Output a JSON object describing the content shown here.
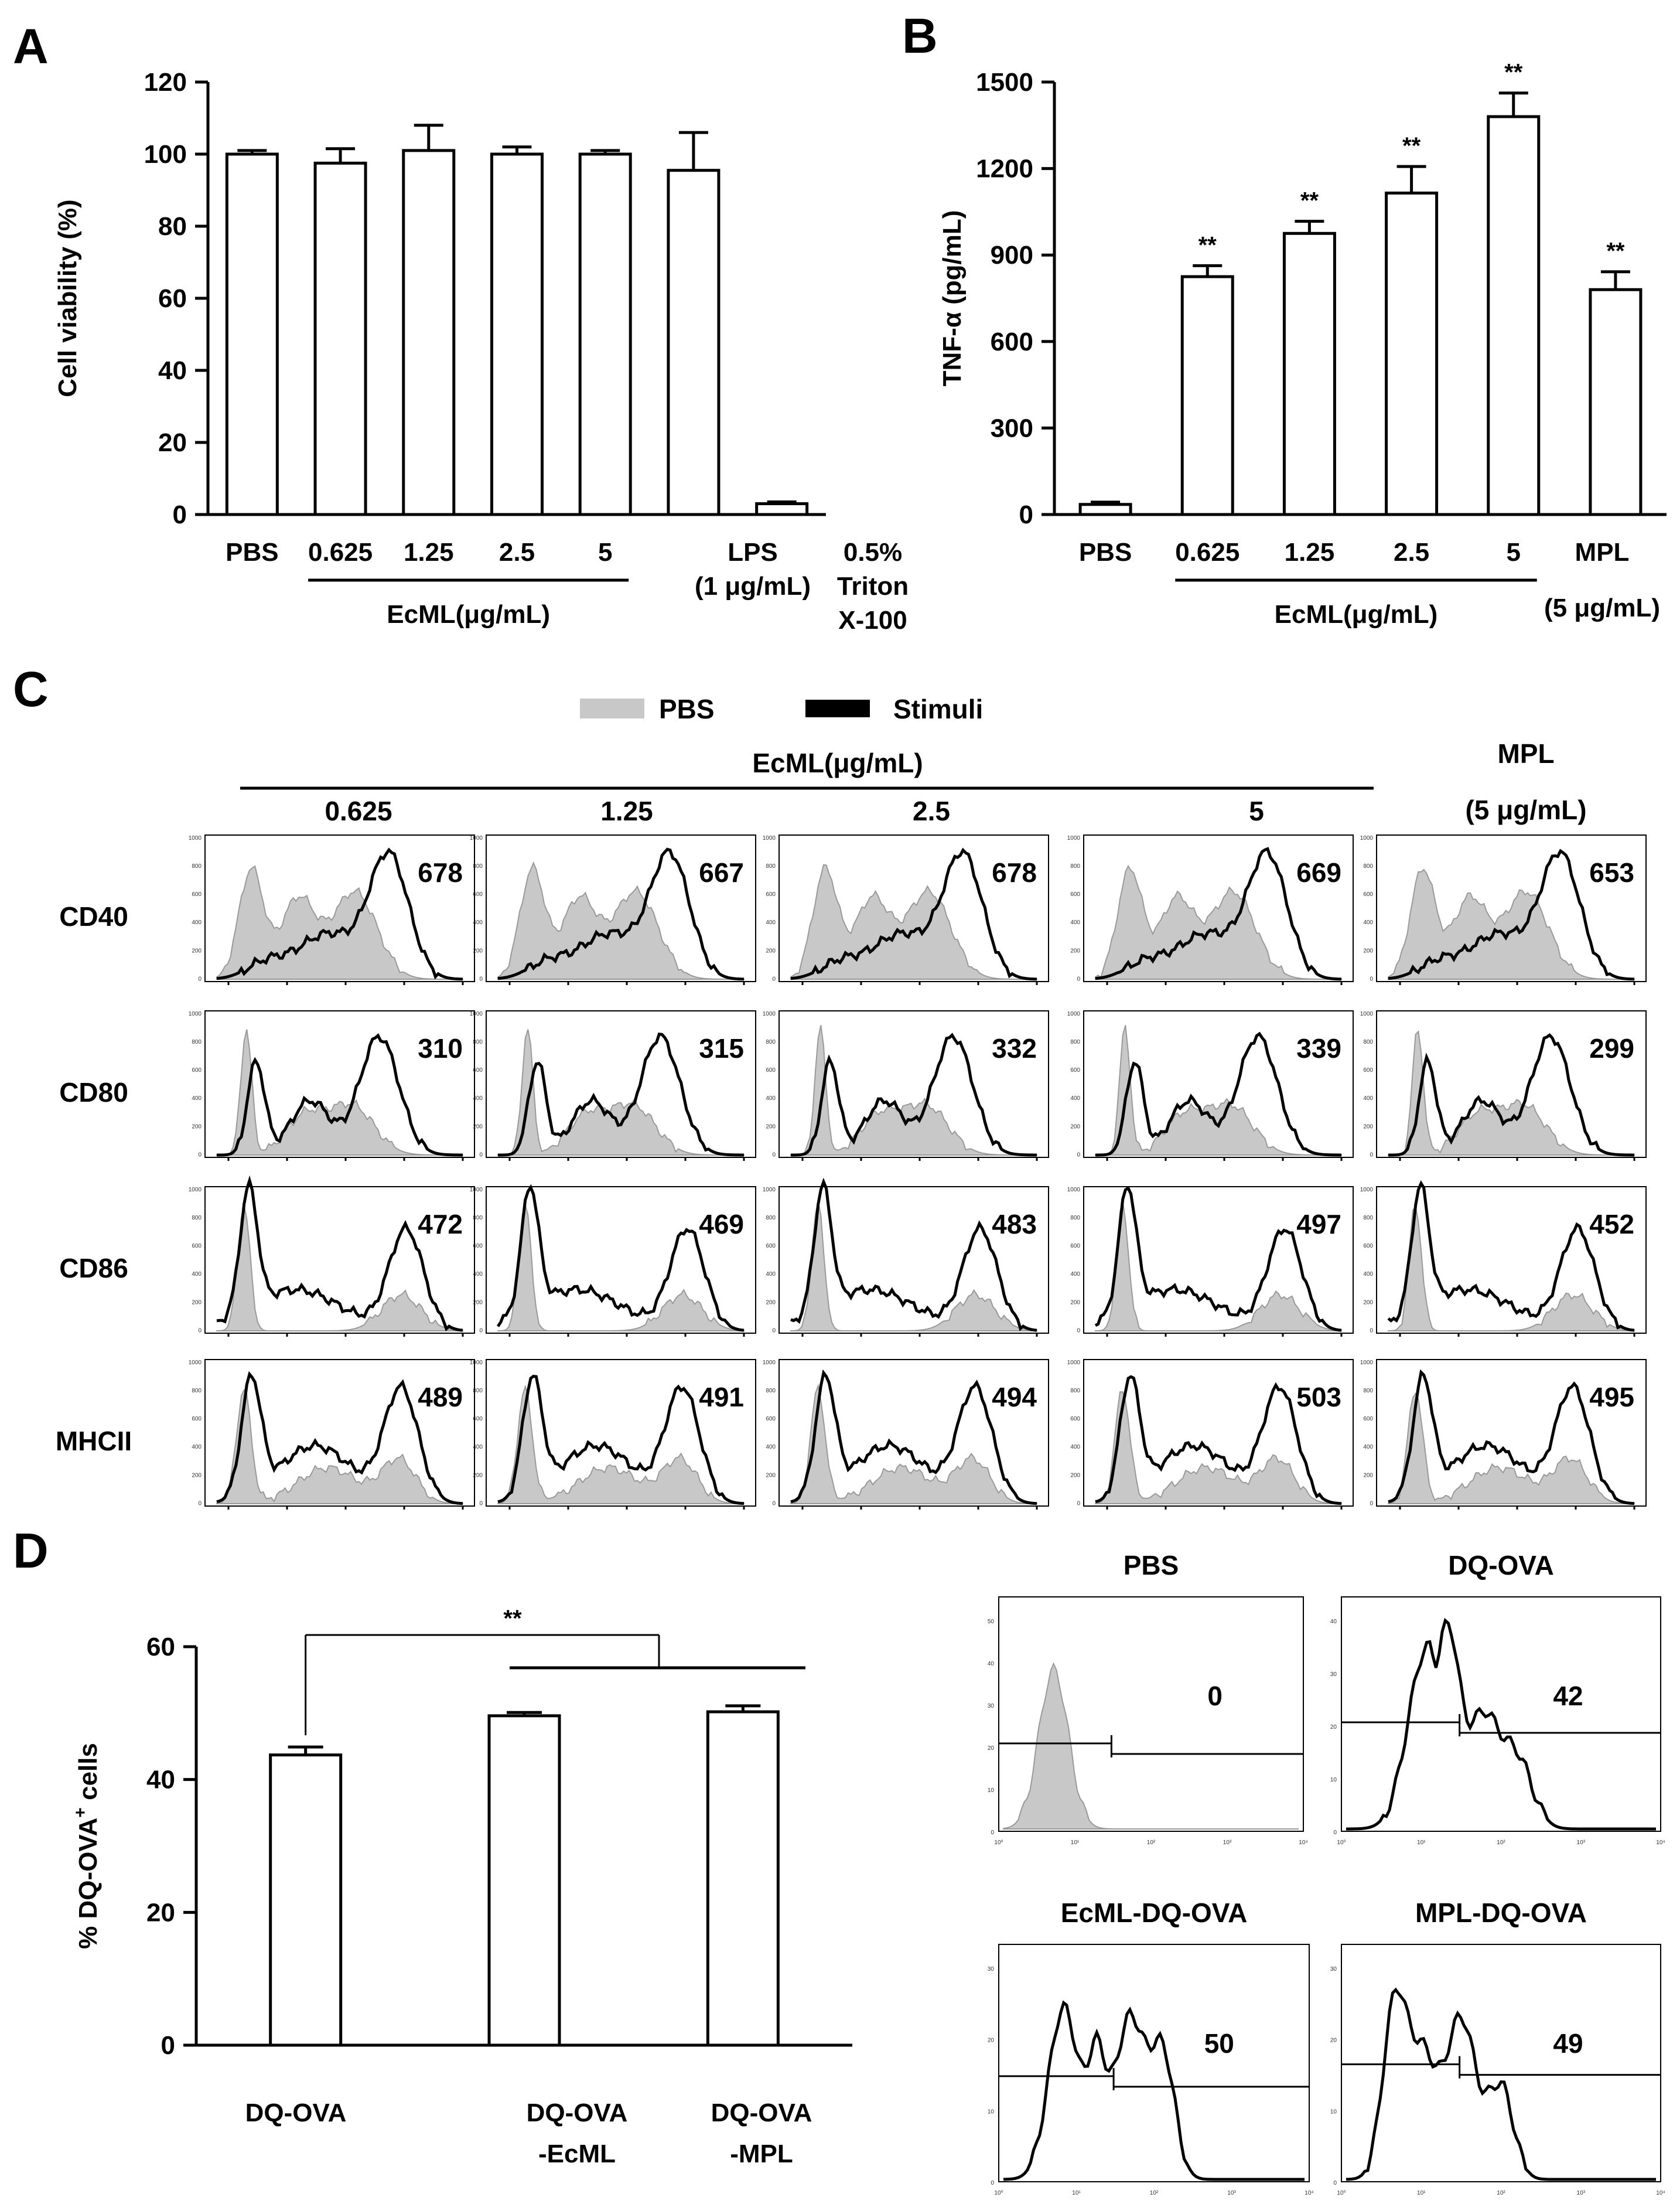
{
  "panel_labels": [
    "A",
    "B",
    "C",
    "D"
  ],
  "chart_data": [
    {
      "panel": "A",
      "type": "bar",
      "title": "",
      "ylabel": "Cell viability (%)",
      "xlabel": "",
      "ylim": [
        0,
        120
      ],
      "yticks": [
        0,
        20,
        40,
        60,
        80,
        100,
        120
      ],
      "categories": [
        "PBS",
        "0.625",
        "1.25",
        "2.5",
        "5",
        "LPS (1 μg/mL)",
        "0.5% Triton X-100"
      ],
      "category_lines": [
        [
          "PBS"
        ],
        [
          "0.625"
        ],
        [
          "1.25"
        ],
        [
          "2.5"
        ],
        [
          "5"
        ],
        [
          "LPS",
          "(1 μg/mL)"
        ],
        [
          "0.5%",
          "Triton",
          "X-100"
        ]
      ],
      "values": [
        100,
        97.5,
        101,
        100,
        100,
        95.5,
        3
      ],
      "errors": [
        1,
        4,
        7,
        2,
        1,
        10.5,
        0.5
      ],
      "group_label": "EcML(μg/mL)",
      "group_span": [
        "0.625",
        "5"
      ]
    },
    {
      "panel": "B",
      "type": "bar",
      "title": "",
      "ylabel": "TNF-α (pg/mL)",
      "xlabel": "",
      "ylim": [
        0,
        1500
      ],
      "yticks": [
        0,
        300,
        600,
        900,
        1200,
        1500
      ],
      "categories": [
        "PBS",
        "0.625",
        "1.25",
        "2.5",
        "5",
        "MPL (5 μg/mL)"
      ],
      "category_lines": [
        [
          "PBS"
        ],
        [
          "0.625"
        ],
        [
          "1.25"
        ],
        [
          "2.5"
        ],
        [
          "5"
        ],
        [
          "MPL",
          "(5 μg/mL)"
        ]
      ],
      "values": [
        35,
        825,
        975,
        1115,
        1380,
        780
      ],
      "errors": [
        8,
        38,
        42,
        92,
        82,
        62
      ],
      "significance": [
        "",
        "**",
        "**",
        "**",
        "**",
        "**"
      ],
      "group_label": "EcML(μg/mL)",
      "group_span": [
        "0.625",
        "5"
      ]
    },
    {
      "panel": "C",
      "type": "histogram-grid",
      "legend": [
        {
          "label": "PBS",
          "color": "#c8c8c8"
        },
        {
          "label": "Stimuli",
          "color": "#000000"
        }
      ],
      "group_label": "EcML(μg/mL)",
      "columns": [
        "0.625",
        "1.25",
        "2.5",
        "5",
        "MPL (5 μg/mL)"
      ],
      "column_lines": [
        [
          "0.625"
        ],
        [
          "1.25"
        ],
        [
          "2.5"
        ],
        [
          "5"
        ],
        [
          "MPL",
          "(5 μg/mL)"
        ]
      ],
      "rows": [
        "CD40",
        "CD80",
        "CD86",
        "MHCII"
      ],
      "mfi": [
        [
          678,
          667,
          678,
          669,
          653
        ],
        [
          310,
          315,
          332,
          339,
          299
        ],
        [
          472,
          469,
          483,
          497,
          452
        ],
        [
          489,
          491,
          494,
          503,
          495
        ]
      ]
    },
    {
      "panel": "D",
      "type": "bar",
      "title": "",
      "ylabel": "% DQ-OVA+ cells",
      "ylabel_main": "% DQ-OVA",
      "ylabel_sup": "+",
      "ylabel_tail": " cells",
      "xlabel": "",
      "ylim": [
        0,
        60
      ],
      "yticks": [
        0,
        20,
        40,
        60
      ],
      "categories": [
        "DQ-OVA",
        "DQ-OVA -EcML",
        "DQ-OVA -MPL"
      ],
      "category_lines": [
        [
          "DQ-OVA"
        ],
        [
          "DQ-OVA",
          "-EcML"
        ],
        [
          "DQ-OVA",
          "-MPL"
        ]
      ],
      "values": [
        43.7,
        49.6,
        50.2
      ],
      "errors": [
        1.2,
        0.5,
        0.9
      ],
      "significance_bracket": "**"
    },
    {
      "panel": "D-right",
      "type": "histogram-grid",
      "plots": [
        {
          "title": "PBS",
          "value": "0",
          "ymax": 50,
          "yticks": [
            0,
            10,
            20,
            30,
            40,
            50
          ],
          "gate_x": 20,
          "fill": true
        },
        {
          "title": "DQ-OVA",
          "value": "42",
          "ymax": 40,
          "yticks": [
            0,
            10,
            20,
            30,
            40
          ],
          "gate_x": 20,
          "fill": false
        },
        {
          "title": "EcML-DQ-OVA",
          "value": "50",
          "ymax": 30,
          "yticks": [
            0,
            10,
            20,
            30
          ],
          "gate_x": 20,
          "fill": false
        },
        {
          "title": "MPL-DQ-OVA",
          "value": "49",
          "ymax": 30,
          "yticks": [
            0,
            10,
            20,
            30
          ],
          "gate_x": 20,
          "fill": false
        }
      ],
      "xticks": [
        "10⁰",
        "10¹",
        "10²",
        "10³",
        "10⁴"
      ]
    }
  ]
}
